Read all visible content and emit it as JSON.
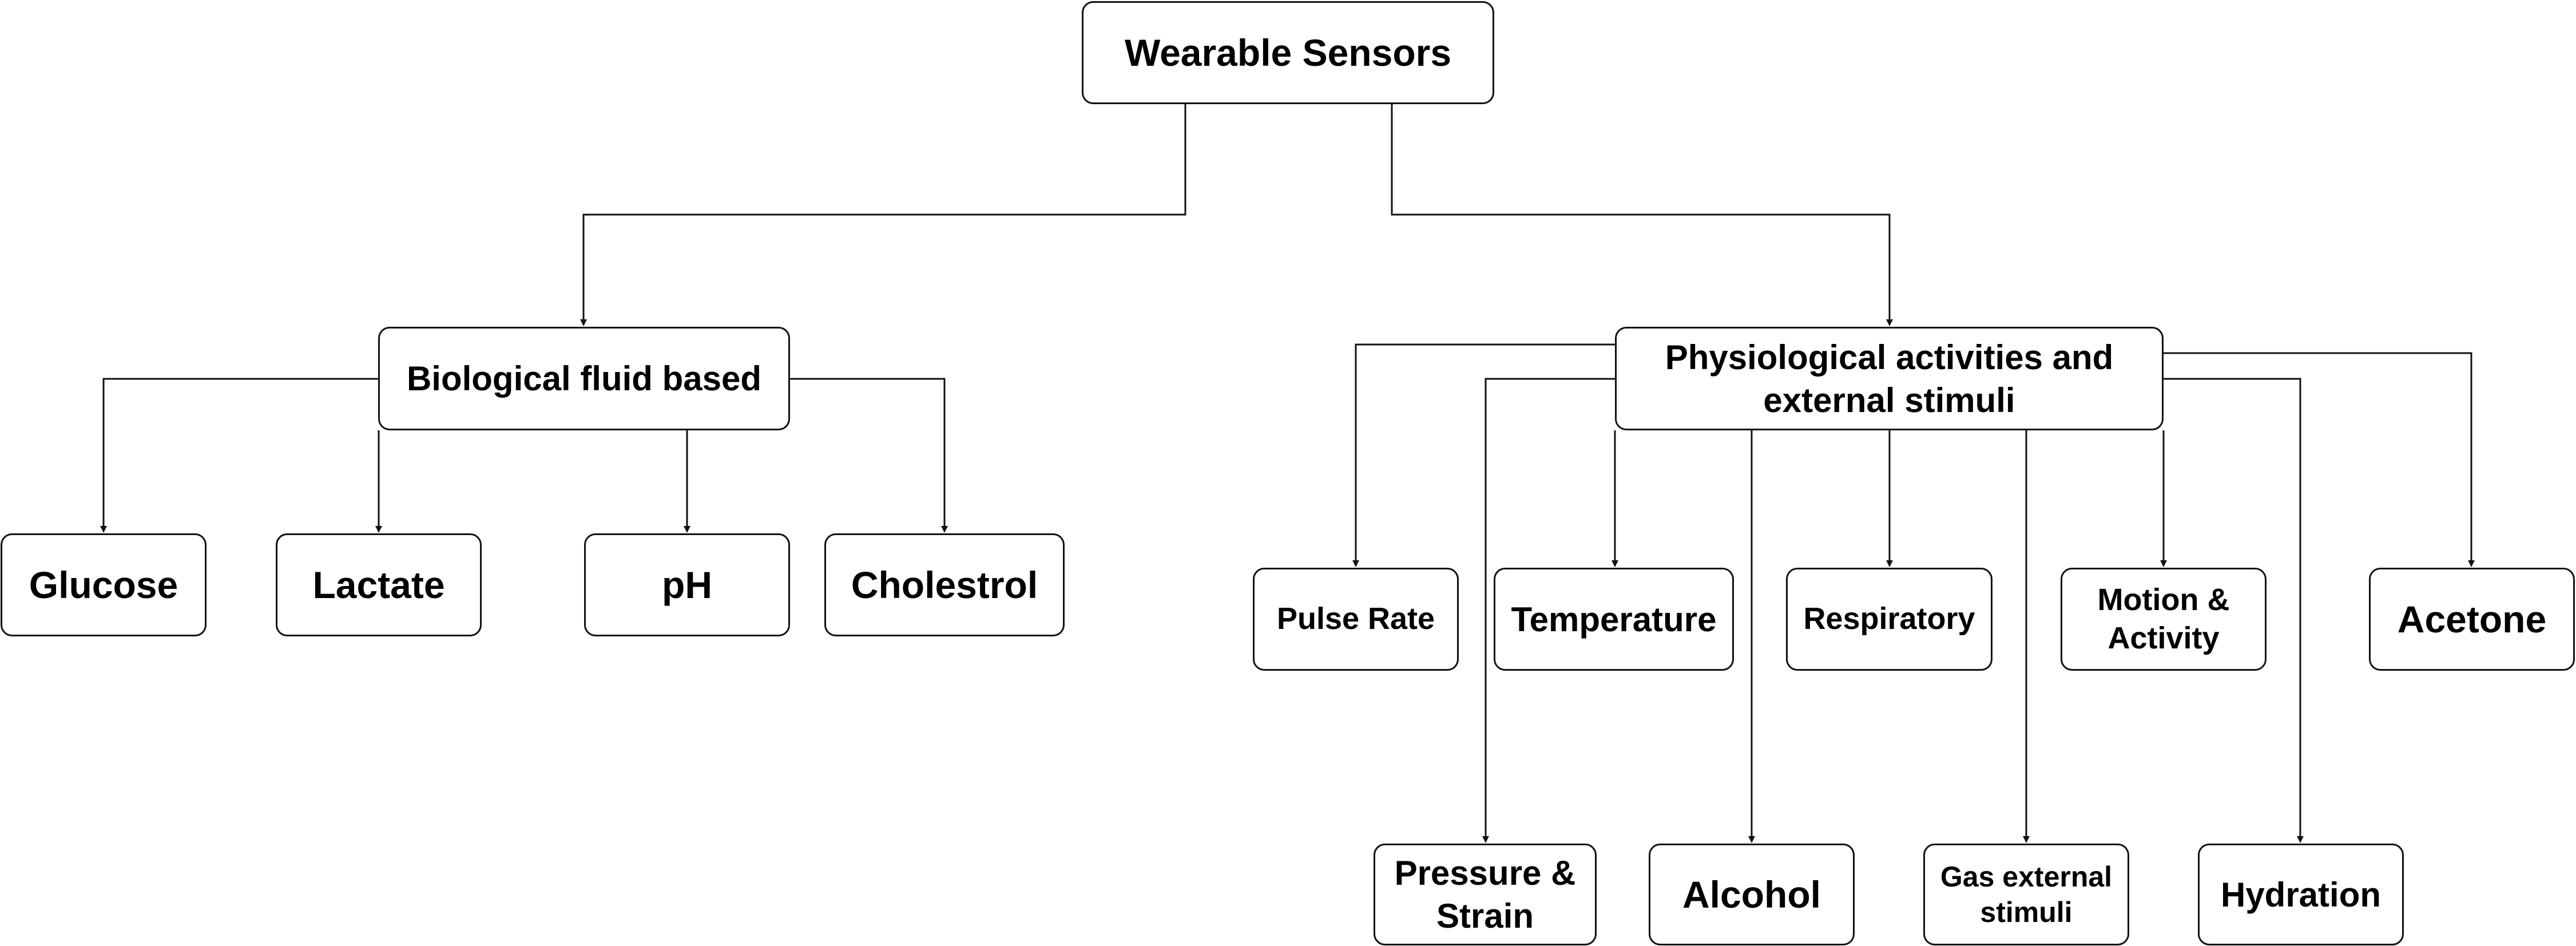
{
  "root": {
    "label": "Wearable Sensors"
  },
  "branches": {
    "biological": {
      "label": "Biological fluid based",
      "children": [
        "Glucose",
        "Lactate",
        "pH",
        "Cholestrol"
      ]
    },
    "physiological": {
      "label": "Physiological activities and external stimuli",
      "children_row1": [
        "Pulse Rate",
        "Temperature",
        "Respiratory",
        "Motion & Activity",
        "Acetone"
      ],
      "children_row2": [
        "Pressure & Strain",
        "Alcohol",
        "Gas external stimuli",
        "Hydration"
      ]
    }
  },
  "colors": {
    "stroke": "#111111",
    "fill": "#ffffff",
    "text": "#000000"
  }
}
